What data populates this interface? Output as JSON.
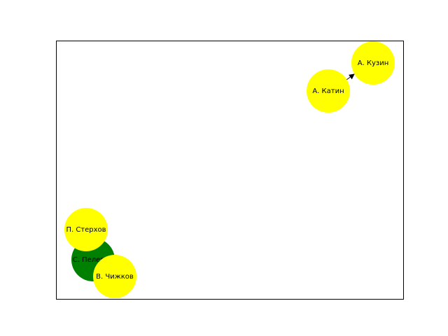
{
  "graph": {
    "nodes": [
      {
        "id": "kuzin",
        "label": "А. Кузин",
        "color": "#ffff00"
      },
      {
        "id": "katin",
        "label": "А. Катин",
        "color": "#ffff00"
      },
      {
        "id": "sterkhov",
        "label": "П. Стерхов",
        "color": "#ffff00"
      },
      {
        "id": "pelevin",
        "label": "С. Пелевин",
        "color": "#008000"
      },
      {
        "id": "chizhkov",
        "label": "В. Чижков",
        "color": "#ffff00"
      }
    ],
    "edges": [
      {
        "from": "katin",
        "to": "kuzin",
        "directed": true
      }
    ]
  }
}
